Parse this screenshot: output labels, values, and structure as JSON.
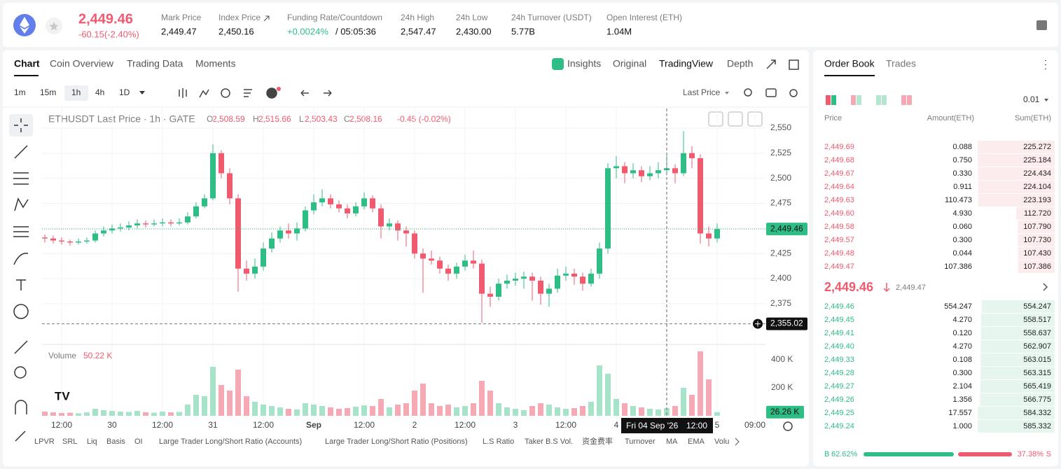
{
  "header": {
    "price": "2,449.46",
    "change": "-60.15(-2.40%)",
    "stats": [
      {
        "label": "Mark Price",
        "value": "2,449.47"
      },
      {
        "label": "Index Price",
        "value": "2,450.16"
      },
      {
        "label": "Funding Rate/Countdown",
        "value": "+0.0024%",
        "value2": "/ 05:05:36"
      },
      {
        "label": "24h High",
        "value": "2,547.47"
      },
      {
        "label": "24h Low",
        "value": "2,430.00"
      },
      {
        "label": "24h Turnover (USDT)",
        "value": "5.77B"
      },
      {
        "label": "Open Interest (ETH)",
        "value": "1.04M"
      }
    ]
  },
  "chart_tabs": [
    "Chart",
    "Coin Overview",
    "Trading Data",
    "Moments"
  ],
  "view_tabs": [
    "Insights",
    "Original",
    "TradingView",
    "Depth"
  ],
  "intervals": [
    "1m",
    "15m",
    "1h",
    "4h",
    "1D"
  ],
  "price_source": "Last Price",
  "legend": {
    "title": "ETHUSDT Last Price · 1h · GATE",
    "o_label": "O",
    "o": "2,508.59",
    "h_label": "H",
    "h": "2,515.66",
    "l_label": "L",
    "l": "2,503.43",
    "c_label": "C",
    "c": "2,508.16",
    "change": "-0.45 (-0.02%)"
  },
  "chart_data": {
    "type": "candlestick",
    "x": [
      0,
      2,
      4,
      6,
      8,
      10,
      12,
      14,
      16,
      18,
      20,
      22,
      24,
      26,
      28,
      30,
      32,
      34,
      36,
      38,
      40,
      42,
      44,
      46,
      48,
      50,
      52,
      54,
      56,
      58,
      60,
      62,
      64,
      66,
      68,
      70,
      72,
      74,
      76,
      78,
      80,
      82,
      84,
      86,
      88,
      90,
      92,
      94,
      96,
      98,
      100,
      102,
      104,
      106,
      108,
      110,
      112,
      114,
      116,
      118,
      120,
      122,
      124,
      126,
      128,
      130,
      132,
      134,
      136,
      138,
      140,
      142,
      144,
      146,
      148,
      150,
      152,
      154,
      156,
      158,
      160
    ],
    "candles": [
      [
        2441,
        2444,
        2436,
        2440
      ],
      [
        2440,
        2443,
        2435,
        2438
      ],
      [
        2438,
        2441,
        2434,
        2437
      ],
      [
        2437,
        2439,
        2433,
        2436
      ],
      [
        2436,
        2440,
        2434,
        2437
      ],
      [
        2437,
        2441,
        2435,
        2438
      ],
      [
        2438,
        2448,
        2436,
        2445
      ],
      [
        2445,
        2452,
        2442,
        2448
      ],
      [
        2448,
        2454,
        2445,
        2450
      ],
      [
        2450,
        2455,
        2447,
        2451
      ],
      [
        2451,
        2457,
        2448,
        2453
      ],
      [
        2453,
        2459,
        2450,
        2455
      ],
      [
        2455,
        2458,
        2451,
        2454
      ],
      [
        2454,
        2459,
        2452,
        2455
      ],
      [
        2455,
        2460,
        2452,
        2456
      ],
      [
        2456,
        2459,
        2452,
        2455
      ],
      [
        2455,
        2460,
        2453,
        2456
      ],
      [
        2456,
        2466,
        2454,
        2462
      ],
      [
        2462,
        2476,
        2460,
        2472
      ],
      [
        2472,
        2484,
        2470,
        2480
      ],
      [
        2480,
        2534,
        2478,
        2525
      ],
      [
        2525,
        2528,
        2500,
        2505
      ],
      [
        2505,
        2510,
        2474,
        2480
      ],
      [
        2480,
        2484,
        2387,
        2410
      ],
      [
        2410,
        2418,
        2398,
        2405
      ],
      [
        2405,
        2420,
        2400,
        2412
      ],
      [
        2412,
        2436,
        2408,
        2430
      ],
      [
        2430,
        2446,
        2426,
        2440
      ],
      [
        2440,
        2452,
        2436,
        2448
      ],
      [
        2448,
        2455,
        2440,
        2445
      ],
      [
        2445,
        2456,
        2438,
        2450
      ],
      [
        2450,
        2472,
        2447,
        2468
      ],
      [
        2468,
        2484,
        2464,
        2476
      ],
      [
        2476,
        2489,
        2472,
        2480
      ],
      [
        2480,
        2484,
        2470,
        2474
      ],
      [
        2474,
        2478,
        2466,
        2470
      ],
      [
        2470,
        2474,
        2460,
        2465
      ],
      [
        2465,
        2476,
        2462,
        2472
      ],
      [
        2472,
        2486,
        2469,
        2480
      ],
      [
        2480,
        2483,
        2466,
        2470
      ],
      [
        2470,
        2474,
        2440,
        2452
      ],
      [
        2452,
        2460,
        2448,
        2455
      ],
      [
        2455,
        2458,
        2438,
        2448
      ],
      [
        2448,
        2452,
        2432,
        2445
      ],
      [
        2445,
        2448,
        2420,
        2425
      ],
      [
        2425,
        2430,
        2386,
        2420
      ],
      [
        2420,
        2428,
        2414,
        2418
      ],
      [
        2418,
        2422,
        2405,
        2410
      ],
      [
        2410,
        2414,
        2398,
        2405
      ],
      [
        2405,
        2416,
        2400,
        2412
      ],
      [
        2412,
        2424,
        2408,
        2418
      ],
      [
        2418,
        2428,
        2410,
        2415
      ],
      [
        2415,
        2419,
        2356,
        2385
      ],
      [
        2385,
        2392,
        2372,
        2382
      ],
      [
        2382,
        2400,
        2378,
        2395
      ],
      [
        2395,
        2404,
        2390,
        2398
      ],
      [
        2398,
        2406,
        2393,
        2400
      ],
      [
        2400,
        2407,
        2390,
        2402
      ],
      [
        2402,
        2406,
        2378,
        2398
      ],
      [
        2398,
        2402,
        2374,
        2385
      ],
      [
        2385,
        2395,
        2372,
        2390
      ],
      [
        2390,
        2410,
        2386,
        2403
      ],
      [
        2403,
        2412,
        2398,
        2405
      ],
      [
        2405,
        2410,
        2394,
        2402
      ],
      [
        2402,
        2406,
        2388,
        2395
      ],
      [
        2395,
        2410,
        2392,
        2405
      ],
      [
        2405,
        2436,
        2400,
        2430
      ],
      [
        2430,
        2515,
        2425,
        2510
      ],
      [
        2510,
        2522,
        2500,
        2512
      ],
      [
        2512,
        2516,
        2495,
        2505
      ],
      [
        2505,
        2515,
        2500,
        2508
      ],
      [
        2508,
        2512,
        2496,
        2502
      ],
      [
        2502,
        2512,
        2498,
        2505
      ],
      [
        2505,
        2516,
        2500,
        2508
      ],
      [
        2508,
        2525,
        2503,
        2510
      ],
      [
        2510,
        2514,
        2495,
        2505
      ],
      [
        2505,
        2547,
        2502,
        2525
      ],
      [
        2525,
        2532,
        2510,
        2520
      ],
      [
        2520,
        2524,
        2435,
        2445
      ],
      [
        2445,
        2452,
        2432,
        2440
      ],
      [
        2440,
        2455,
        2436,
        2449.46
      ]
    ],
    "volume": [
      30000,
      25000,
      20000,
      22000,
      18000,
      25000,
      50000,
      40000,
      35000,
      30000,
      28000,
      35000,
      25000,
      22000,
      30000,
      25000,
      28000,
      80000,
      150000,
      140000,
      350000,
      220000,
      180000,
      330000,
      140000,
      100000,
      80000,
      70000,
      60000,
      50000,
      45000,
      90000,
      80000,
      70000,
      60000,
      50000,
      55000,
      65000,
      75000,
      70000,
      120000,
      60000,
      80000,
      90000,
      180000,
      230000,
      90000,
      70000,
      80000,
      60000,
      70000,
      90000,
      250000,
      180000,
      90000,
      60000,
      50000,
      40000,
      70000,
      90000,
      80000,
      60000,
      50000,
      55000,
      70000,
      100000,
      360000,
      300000,
      120000,
      90000,
      70000,
      60000,
      50000,
      45000,
      55000,
      70000,
      200000,
      150000,
      460000,
      260000,
      26260
    ],
    "up_color": "#2ebd85",
    "down_color": "#ef5a6f",
    "up_volume_color": "#a6e3c9",
    "down_volume_color": "#f5a9b5",
    "xlim": [
      -0.67,
      171.5
    ],
    "ylim": [
      2334.5,
      2569.5
    ],
    "xticks": [
      {
        "value": 4,
        "label": "12:00"
      },
      {
        "value": 16,
        "label": "30"
      },
      {
        "value": 28,
        "label": "12:00"
      },
      {
        "value": 40,
        "label": "31"
      },
      {
        "value": 52,
        "label": "12:00"
      },
      {
        "value": 64,
        "label": "Sep"
      },
      {
        "value": 76,
        "label": "12:00"
      },
      {
        "value": 88,
        "label": "2"
      },
      {
        "value": 100,
        "label": "12:00"
      },
      {
        "value": 112,
        "label": "3"
      },
      {
        "value": 124,
        "label": "12:00"
      },
      {
        "value": 136,
        "label": "4"
      },
      {
        "value": 160,
        "label": "5"
      },
      {
        "value": 169,
        "label": "09:00"
      }
    ],
    "yticks": [
      {
        "value": 2375,
        "label": "2,375"
      },
      {
        "value": 2400,
        "label": "2,400"
      },
      {
        "value": 2425,
        "label": "2,425"
      },
      {
        "value": 2450,
        "label": "2,450"
      },
      {
        "value": 2475,
        "label": "2,475"
      },
      {
        "value": 2500,
        "label": "2,500"
      },
      {
        "value": 2525,
        "label": "2,525"
      },
      {
        "value": 2550,
        "label": "2,550"
      }
    ],
    "volume_ylim": [
      0,
      485000
    ],
    "volume_ticks": [
      {
        "value": 200000,
        "label": "200 K"
      },
      {
        "value": 400000,
        "label": "400 K"
      }
    ],
    "volume_title": "Volume",
    "volume_value": "50.22 K",
    "volume_tag": "26.26 K",
    "last_price": {
      "value": 2449.46,
      "label": "2,449.46"
    },
    "marker": {
      "value": 2355.02,
      "label": "2,355.02"
    },
    "crosshair": {
      "x": 148,
      "date": "Fri 04 Sep '26",
      "time": "12:00"
    },
    "grid": true
  },
  "indicators": [
    "LPVR",
    "SRL",
    "Liq",
    "Basis",
    "OI",
    "Large Trader Long/Short Ratio (Accounts)",
    "Large Trader Long/Short Ratio (Positions)",
    "L.S Ratio",
    "Taker B.S Vol.",
    "资金费率",
    "Turnover",
    "MA",
    "EMA",
    "Volu"
  ],
  "order_book": {
    "tabs": [
      "Order Book",
      "Trades"
    ],
    "precision": "0.01",
    "columns": [
      "Price",
      "Amount(ETH)",
      "Sum(ETH)"
    ],
    "asks": [
      [
        "2,449.69",
        "0.088",
        "225.272"
      ],
      [
        "2,449.68",
        "0.750",
        "225.184"
      ],
      [
        "2,449.67",
        "0.330",
        "224.434"
      ],
      [
        "2,449.64",
        "0.911",
        "224.104"
      ],
      [
        "2,449.63",
        "110.473",
        "223.193"
      ],
      [
        "2,449.60",
        "4.930",
        "112.720"
      ],
      [
        "2,449.58",
        "0.060",
        "107.790"
      ],
      [
        "2,449.57",
        "0.300",
        "107.730"
      ],
      [
        "2,449.48",
        "0.044",
        "107.430"
      ],
      [
        "2,449.47",
        "107.386",
        "107.386"
      ]
    ],
    "mid_price": "2,449.46",
    "mark_price": "2,449.47",
    "bids": [
      [
        "2,449.46",
        "554.247",
        "554.247"
      ],
      [
        "2,449.45",
        "4.270",
        "558.517"
      ],
      [
        "2,449.41",
        "0.120",
        "558.637"
      ],
      [
        "2,449.40",
        "4.270",
        "562.907"
      ],
      [
        "2,449.33",
        "0.108",
        "563.015"
      ],
      [
        "2,449.28",
        "0.300",
        "563.315"
      ],
      [
        "2,449.27",
        "2.104",
        "565.419"
      ],
      [
        "2,449.26",
        "1.356",
        "566.775"
      ],
      [
        "2,449.25",
        "17.557",
        "584.332"
      ],
      [
        "2,449.24",
        "1.000",
        "585.332"
      ]
    ],
    "ratio": {
      "buy_label": "B",
      "buy": 62.62,
      "buy_text": "62.62%",
      "sell": 37.38,
      "sell_text": "37.38%",
      "sell_label": "S"
    }
  }
}
